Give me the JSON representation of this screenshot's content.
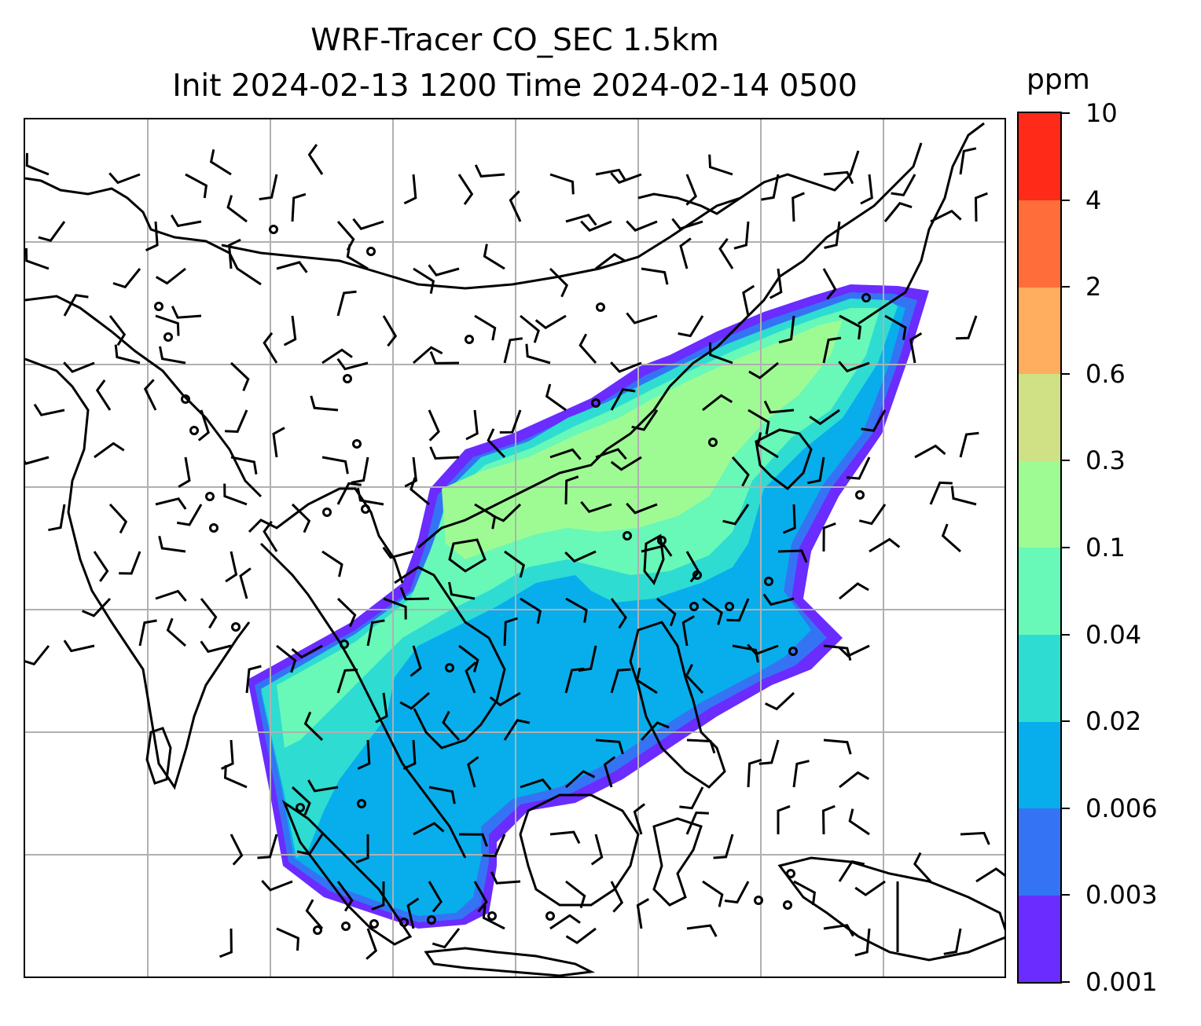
{
  "figure": {
    "title_line1": "WRF-Tracer CO_SEC 1.5km",
    "title_line2": "Init 2024-02-13 1200 Time 2024-02-14 0500"
  },
  "colorbar": {
    "unit": "ppm",
    "ticks": [
      "0.001",
      "0.003",
      "0.006",
      "0.02",
      "0.04",
      "0.1",
      "0.3",
      "0.6",
      "2",
      "4",
      "10"
    ],
    "colors": [
      "#6a2cff",
      "#3474f4",
      "#08aeeb",
      "#2edcd2",
      "#68f8b8",
      "#9efb94",
      "#d0e084",
      "#ffad5e",
      "#ff6e3a",
      "#ff2a18"
    ]
  },
  "map": {
    "gridlines": true,
    "gridline_color": "#b0b0b0",
    "coastline_color": "#000000",
    "tracer_plume_present": true,
    "wind_barbs_present": true
  }
}
